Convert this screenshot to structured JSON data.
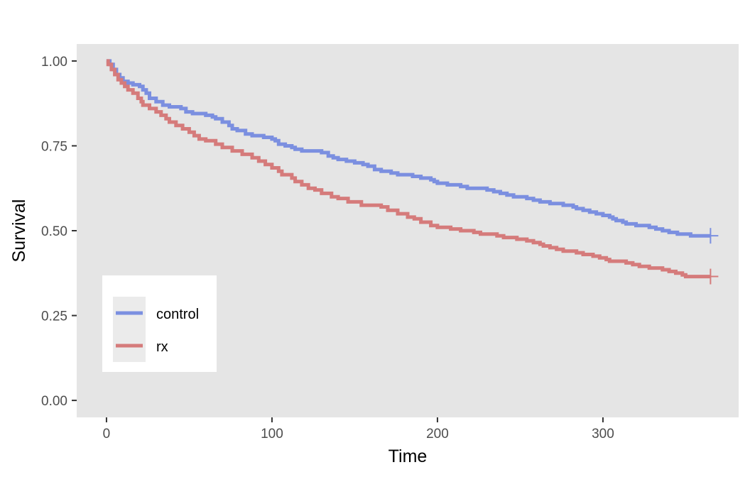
{
  "chart_data": {
    "type": "line",
    "subtype": "step",
    "xlabel": "Time",
    "ylabel": "Survival",
    "xlim": [
      -18,
      382
    ],
    "ylim": [
      -0.05,
      1.05
    ],
    "x_ticks": [
      {
        "value": 0,
        "label": "0"
      },
      {
        "value": 100,
        "label": "100"
      },
      {
        "value": 200,
        "label": "200"
      },
      {
        "value": 300,
        "label": "300"
      }
    ],
    "y_ticks": [
      {
        "value": 0,
        "label": "0.00"
      },
      {
        "value": 0.25,
        "label": "0.25"
      },
      {
        "value": 0.5,
        "label": "0.50"
      },
      {
        "value": 0.75,
        "label": "0.75"
      },
      {
        "value": 1,
        "label": "1.00"
      }
    ],
    "grid": false,
    "panel_background": "#e5e5e5",
    "legend_position": "bottom-left, inside",
    "series": [
      {
        "name": "control",
        "color": "#7b8fe0",
        "censor_mark": {
          "x": 365,
          "y": 0.485
        },
        "points": [
          [
            0,
            1.0
          ],
          [
            2,
            0.99
          ],
          [
            4,
            0.975
          ],
          [
            6,
            0.96
          ],
          [
            8,
            0.95
          ],
          [
            10,
            0.94
          ],
          [
            13,
            0.935
          ],
          [
            16,
            0.93
          ],
          [
            20,
            0.925
          ],
          [
            22,
            0.915
          ],
          [
            24,
            0.905
          ],
          [
            26,
            0.89
          ],
          [
            30,
            0.88
          ],
          [
            34,
            0.87
          ],
          [
            38,
            0.865
          ],
          [
            45,
            0.86
          ],
          [
            48,
            0.85
          ],
          [
            52,
            0.845
          ],
          [
            60,
            0.84
          ],
          [
            64,
            0.835
          ],
          [
            66,
            0.83
          ],
          [
            70,
            0.82
          ],
          [
            74,
            0.81
          ],
          [
            76,
            0.8
          ],
          [
            79,
            0.795
          ],
          [
            84,
            0.785
          ],
          [
            88,
            0.78
          ],
          [
            95,
            0.775
          ],
          [
            100,
            0.77
          ],
          [
            102,
            0.765
          ],
          [
            104,
            0.755
          ],
          [
            108,
            0.75
          ],
          [
            112,
            0.745
          ],
          [
            114,
            0.74
          ],
          [
            118,
            0.735
          ],
          [
            130,
            0.73
          ],
          [
            134,
            0.72
          ],
          [
            137,
            0.715
          ],
          [
            140,
            0.71
          ],
          [
            145,
            0.705
          ],
          [
            150,
            0.7
          ],
          [
            155,
            0.695
          ],
          [
            158,
            0.69
          ],
          [
            162,
            0.68
          ],
          [
            166,
            0.675
          ],
          [
            172,
            0.67
          ],
          [
            176,
            0.665
          ],
          [
            185,
            0.66
          ],
          [
            190,
            0.655
          ],
          [
            196,
            0.65
          ],
          [
            198,
            0.645
          ],
          [
            200,
            0.64
          ],
          [
            206,
            0.635
          ],
          [
            214,
            0.63
          ],
          [
            218,
            0.625
          ],
          [
            230,
            0.62
          ],
          [
            234,
            0.615
          ],
          [
            238,
            0.61
          ],
          [
            242,
            0.605
          ],
          [
            246,
            0.6
          ],
          [
            254,
            0.595
          ],
          [
            258,
            0.59
          ],
          [
            262,
            0.585
          ],
          [
            268,
            0.58
          ],
          [
            276,
            0.575
          ],
          [
            282,
            0.57
          ],
          [
            284,
            0.565
          ],
          [
            288,
            0.56
          ],
          [
            292,
            0.555
          ],
          [
            296,
            0.55
          ],
          [
            300,
            0.545
          ],
          [
            304,
            0.54
          ],
          [
            306,
            0.535
          ],
          [
            308,
            0.53
          ],
          [
            312,
            0.525
          ],
          [
            314,
            0.52
          ],
          [
            320,
            0.515
          ],
          [
            328,
            0.51
          ],
          [
            332,
            0.505
          ],
          [
            336,
            0.5
          ],
          [
            340,
            0.495
          ],
          [
            345,
            0.49
          ],
          [
            353,
            0.485
          ],
          [
            365,
            0.485
          ]
        ]
      },
      {
        "name": "rx",
        "color": "#d57b7b",
        "censor_mark": {
          "x": 365,
          "y": 0.365
        },
        "points": [
          [
            0,
            1.0
          ],
          [
            1,
            0.99
          ],
          [
            3,
            0.975
          ],
          [
            5,
            0.96
          ],
          [
            7,
            0.945
          ],
          [
            9,
            0.935
          ],
          [
            11,
            0.925
          ],
          [
            13,
            0.915
          ],
          [
            16,
            0.905
          ],
          [
            19,
            0.89
          ],
          [
            21,
            0.88
          ],
          [
            22,
            0.87
          ],
          [
            26,
            0.86
          ],
          [
            30,
            0.85
          ],
          [
            33,
            0.84
          ],
          [
            36,
            0.83
          ],
          [
            38,
            0.82
          ],
          [
            42,
            0.81
          ],
          [
            46,
            0.8
          ],
          [
            50,
            0.79
          ],
          [
            53,
            0.78
          ],
          [
            56,
            0.77
          ],
          [
            60,
            0.765
          ],
          [
            66,
            0.755
          ],
          [
            70,
            0.745
          ],
          [
            76,
            0.735
          ],
          [
            82,
            0.725
          ],
          [
            88,
            0.715
          ],
          [
            92,
            0.705
          ],
          [
            96,
            0.695
          ],
          [
            100,
            0.685
          ],
          [
            104,
            0.675
          ],
          [
            106,
            0.665
          ],
          [
            112,
            0.655
          ],
          [
            114,
            0.645
          ],
          [
            118,
            0.635
          ],
          [
            122,
            0.625
          ],
          [
            126,
            0.62
          ],
          [
            130,
            0.61
          ],
          [
            136,
            0.6
          ],
          [
            140,
            0.595
          ],
          [
            146,
            0.585
          ],
          [
            154,
            0.575
          ],
          [
            166,
            0.57
          ],
          [
            170,
            0.56
          ],
          [
            176,
            0.55
          ],
          [
            182,
            0.54
          ],
          [
            186,
            0.535
          ],
          [
            190,
            0.525
          ],
          [
            196,
            0.515
          ],
          [
            200,
            0.51
          ],
          [
            208,
            0.505
          ],
          [
            214,
            0.5
          ],
          [
            222,
            0.495
          ],
          [
            226,
            0.49
          ],
          [
            236,
            0.485
          ],
          [
            240,
            0.48
          ],
          [
            248,
            0.475
          ],
          [
            254,
            0.47
          ],
          [
            258,
            0.465
          ],
          [
            262,
            0.46
          ],
          [
            264,
            0.455
          ],
          [
            268,
            0.45
          ],
          [
            272,
            0.445
          ],
          [
            276,
            0.44
          ],
          [
            284,
            0.435
          ],
          [
            288,
            0.43
          ],
          [
            294,
            0.425
          ],
          [
            298,
            0.42
          ],
          [
            302,
            0.415
          ],
          [
            304,
            0.41
          ],
          [
            314,
            0.405
          ],
          [
            318,
            0.4
          ],
          [
            322,
            0.395
          ],
          [
            328,
            0.39
          ],
          [
            336,
            0.385
          ],
          [
            340,
            0.38
          ],
          [
            344,
            0.375
          ],
          [
            348,
            0.37
          ],
          [
            350,
            0.365
          ],
          [
            365,
            0.365
          ]
        ]
      }
    ]
  }
}
